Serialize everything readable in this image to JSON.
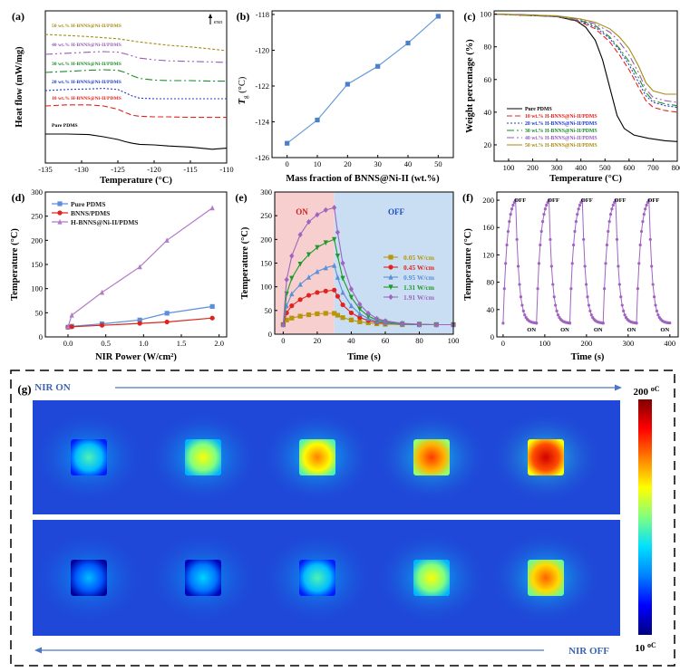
{
  "figure": {
    "panel_g_label": "(g)"
  },
  "chart_data": [
    {
      "id": "a",
      "panel_label": "(a)",
      "type": "line",
      "title": "",
      "xlabel": "Temperature (°C)",
      "ylabel": "Heat flow  (mW/mg)",
      "xlim": [
        -135,
        -110
      ],
      "xticks": [
        -135,
        -130,
        -125,
        -120,
        -115,
        -110
      ],
      "annotation": "exo",
      "series": [
        {
          "name": "Pure PDMS",
          "color": "#000000",
          "dash": "",
          "offset": 0,
          "x": [
            -135,
            -132,
            -129,
            -127,
            -125,
            -124,
            -123,
            -122,
            -120,
            -118,
            -115,
            -112,
            -110
          ],
          "y": [
            0.0,
            0.0,
            -0.01,
            -0.05,
            -0.1,
            -0.14,
            -0.17,
            -0.19,
            -0.2,
            -0.22,
            -0.24,
            -0.28,
            -0.26
          ]
        },
        {
          "name": "10 wt.% H-BNNS@Ni-II/PDMS",
          "color": "#e0241b",
          "dash": "6,3",
          "offset": 1,
          "x": [
            -135,
            -132,
            -129,
            -127,
            -125,
            -124,
            -123,
            -122,
            -120,
            -118,
            -115,
            -112,
            -110
          ],
          "y": [
            0.0,
            0.02,
            0.02,
            0.0,
            -0.06,
            -0.12,
            -0.17,
            -0.19,
            -0.2,
            -0.2,
            -0.21,
            -0.21,
            -0.21
          ]
        },
        {
          "name": "20 wt.% H-BNNS@Ni-II/PDMS",
          "color": "#1f3cc4",
          "dash": "2,2",
          "offset": 2,
          "x": [
            -135,
            -132,
            -129,
            -127,
            -125,
            -124,
            -123,
            -122,
            -120,
            -118,
            -115,
            -112,
            -110
          ],
          "y": [
            0.0,
            0.02,
            0.03,
            0.04,
            0.02,
            -0.04,
            -0.1,
            -0.14,
            -0.15,
            -0.15,
            -0.15,
            -0.15,
            -0.15
          ]
        },
        {
          "name": "30 wt.% H-BNNS@Ni-II/PDMS",
          "color": "#1e8a2a",
          "dash": "8,3,2,3",
          "offset": 3,
          "x": [
            -135,
            -132,
            -129,
            -127,
            -125,
            -124,
            -123,
            -122,
            -120,
            -118,
            -115,
            -112,
            -110
          ],
          "y": [
            0.0,
            0.02,
            0.04,
            0.05,
            0.04,
            0.0,
            -0.06,
            -0.11,
            -0.14,
            -0.15,
            -0.15,
            -0.16,
            -0.16
          ]
        },
        {
          "name": "40 wt.% H-BNNS@Ni-II/PDMS",
          "color": "#9a5cb8",
          "dash": "8,3,2,3,2,3",
          "offset": 4,
          "x": [
            -135,
            -132,
            -129,
            -127,
            -125,
            -124,
            -123,
            -122,
            -120,
            -118,
            -115,
            -112,
            -110
          ],
          "y": [
            0.0,
            0.02,
            0.04,
            0.05,
            0.04,
            0.01,
            -0.03,
            -0.07,
            -0.1,
            -0.12,
            -0.13,
            -0.14,
            -0.15
          ]
        },
        {
          "name": "50 wt.% H-BNNS@Ni-II/PDMS",
          "color": "#a88a14",
          "dash": "3,2",
          "offset": 5,
          "x": [
            -135,
            -132,
            -129,
            -127,
            -125,
            -124,
            -123,
            -122,
            -120,
            -118,
            -115,
            -112,
            -110
          ],
          "y": [
            0.0,
            -0.02,
            -0.04,
            -0.06,
            -0.08,
            -0.1,
            -0.12,
            -0.14,
            -0.17,
            -0.2,
            -0.23,
            -0.27,
            -0.3
          ]
        }
      ]
    },
    {
      "id": "b",
      "panel_label": "(b)",
      "type": "line",
      "title": "",
      "xlabel": "Mass fraction of BNNS@Ni-II (wt.%)",
      "ylabel_main": "T",
      "ylabel_sub": "g",
      "ylabel_unit": " (°C)",
      "xlim": [
        -5,
        55
      ],
      "ylim": [
        -126,
        -117.8
      ],
      "xticks": [
        0,
        10,
        20,
        30,
        40,
        50
      ],
      "yticks": [
        -126,
        -124,
        -122,
        -120,
        -118
      ],
      "series": [
        {
          "name": "Tg",
          "color": "#6a9bd8",
          "x": [
            0,
            10,
            20,
            30,
            40,
            50
          ],
          "y": [
            -125.2,
            -123.9,
            -121.9,
            -120.9,
            -119.6,
            -118.1
          ]
        }
      ]
    },
    {
      "id": "c",
      "panel_label": "(c)",
      "type": "line",
      "title": "",
      "xlabel": "Temperature (°C)",
      "ylabel": "Weight percentage (%)",
      "xlim": [
        40,
        800
      ],
      "ylim": [
        10,
        102
      ],
      "xticks": [
        100,
        200,
        300,
        400,
        500,
        600,
        700,
        800
      ],
      "yticks": [
        20,
        40,
        60,
        80,
        100
      ],
      "series": [
        {
          "name": "Pure PDMS",
          "color": "#000000",
          "dash": "",
          "x": [
            40,
            200,
            300,
            380,
            420,
            460,
            490,
            520,
            550,
            580,
            620,
            680,
            750,
            800
          ],
          "y": [
            100,
            99.5,
            98.5,
            96,
            92,
            84,
            72,
            55,
            38,
            30,
            26,
            24,
            22.5,
            22
          ]
        },
        {
          "name": "10 wt.% H-BNNS@Ni-II/PDMS",
          "color": "#e0241b",
          "dash": "6,3",
          "x": [
            40,
            300,
            400,
            460,
            520,
            560,
            600,
            640,
            670,
            700,
            750,
            800
          ],
          "y": [
            100,
            98.5,
            95,
            91,
            83,
            75,
            66,
            55,
            47,
            43,
            41,
            40
          ]
        },
        {
          "name": "20 wt.% H-BNNS@Ni-II/PDMS",
          "color": "#1f3cc4",
          "dash": "2,2",
          "x": [
            40,
            300,
            400,
            460,
            520,
            560,
            600,
            640,
            670,
            700,
            750,
            800
          ],
          "y": [
            100,
            98.5,
            95.5,
            92,
            85,
            78,
            69,
            58,
            50,
            46,
            44,
            43
          ]
        },
        {
          "name": "30 wt.% H-BNNS@Ni-II/PDMS",
          "color": "#1e8a2a",
          "dash": "8,3,2,3",
          "x": [
            40,
            300,
            400,
            460,
            520,
            560,
            600,
            640,
            670,
            700,
            750,
            800
          ],
          "y": [
            100,
            98.5,
            96,
            93,
            86,
            79,
            71,
            61,
            52,
            47,
            45,
            44
          ]
        },
        {
          "name": "40 wt.% H-BNNS@Ni-II/PDMS",
          "color": "#9a5cb8",
          "dash": "8,3,2,3,2,3",
          "x": [
            40,
            300,
            400,
            460,
            520,
            560,
            600,
            640,
            670,
            700,
            750,
            800
          ],
          "y": [
            100,
            98.8,
            96.5,
            94,
            89,
            83,
            75,
            64,
            54,
            49,
            47,
            46
          ]
        },
        {
          "name": "50 wt.% H-BNNS@Ni-II/PDMS",
          "color": "#a88a14",
          "dash": "",
          "x": [
            40,
            300,
            400,
            460,
            520,
            560,
            600,
            640,
            670,
            700,
            750,
            800
          ],
          "y": [
            100,
            99,
            97,
            95,
            91,
            86,
            79,
            68,
            58,
            53,
            51,
            51
          ]
        }
      ]
    },
    {
      "id": "d",
      "panel_label": "(d)",
      "type": "line",
      "title": "",
      "xlabel": "NIR Power (W/cm²)",
      "ylabel": "Temperature (°C)",
      "xlim": [
        -0.3,
        2.1
      ],
      "ylim": [
        0,
        300
      ],
      "xticks": [
        0.0,
        0.5,
        1.0,
        1.5,
        2.0
      ],
      "xticklabels": [
        "0.0",
        "0.5",
        "1.0",
        "1.5",
        "2.0"
      ],
      "yticks": [
        0,
        50,
        100,
        150,
        200,
        250,
        300
      ],
      "series": [
        {
          "name": "Pure PDMS",
          "color": "#5b8fd9",
          "marker": "square",
          "x": [
            0.0,
            0.05,
            0.45,
            0.95,
            1.31,
            1.91
          ],
          "y": [
            20,
            22,
            27,
            35,
            49,
            63
          ]
        },
        {
          "name": "BNNS/PDMS",
          "color": "#e0241b",
          "marker": "circle",
          "x": [
            0.0,
            0.05,
            0.45,
            0.95,
            1.31,
            1.91
          ],
          "y": [
            20,
            21,
            24,
            28,
            31,
            39
          ]
        },
        {
          "name": "H-BNNS@Ni-II/PDMS",
          "color": "#b07cc6",
          "marker": "triangle",
          "x": [
            0.0,
            0.05,
            0.45,
            0.95,
            1.31,
            1.91
          ],
          "y": [
            21,
            45,
            92,
            145,
            200,
            267
          ]
        }
      ]
    },
    {
      "id": "e",
      "panel_label": "(e)",
      "type": "line",
      "title": "",
      "xlabel": "Time (s)",
      "ylabel": "Temperature (°C)",
      "xlim": [
        -5,
        100
      ],
      "ylim": [
        0,
        300
      ],
      "xticks": [
        0,
        20,
        40,
        60,
        80,
        100
      ],
      "yticks": [
        0,
        50,
        100,
        150,
        200,
        250,
        300
      ],
      "on_label": "ON",
      "off_label": "OFF",
      "switch_time": 30,
      "series": [
        {
          "name": "0.05 W/cm",
          "color": "#b8960c",
          "marker": "square",
          "x": [
            0,
            2,
            5,
            10,
            15,
            20,
            25,
            30,
            32,
            35,
            40,
            45,
            50,
            55,
            60,
            70,
            80,
            90,
            100
          ],
          "y": [
            20,
            30,
            34,
            38,
            41,
            43,
            44,
            44,
            40,
            35,
            30,
            26,
            24,
            22,
            21,
            20,
            20,
            20,
            20
          ]
        },
        {
          "name": "0.45 W/cm",
          "color": "#e0241b",
          "marker": "circle",
          "x": [
            0,
            2,
            5,
            10,
            15,
            20,
            25,
            30,
            32,
            35,
            40,
            45,
            50,
            55,
            60,
            70,
            80,
            90,
            100
          ],
          "y": [
            20,
            45,
            60,
            73,
            82,
            88,
            91,
            93,
            80,
            62,
            45,
            35,
            29,
            25,
            23,
            21,
            20,
            20,
            20
          ]
        },
        {
          "name": "0.95 W/cm",
          "color": "#5b8fd9",
          "marker": "triangle",
          "x": [
            0,
            2,
            5,
            10,
            15,
            20,
            25,
            30,
            32,
            35,
            40,
            45,
            50,
            55,
            60,
            70,
            80,
            90,
            100
          ],
          "y": [
            20,
            60,
            85,
            105,
            120,
            132,
            140,
            145,
            120,
            88,
            60,
            43,
            33,
            27,
            24,
            21,
            20,
            20,
            20
          ]
        },
        {
          "name": "1.31 W/cm",
          "color": "#1e9a2a",
          "marker": "invtriangle",
          "x": [
            0,
            2,
            5,
            10,
            15,
            20,
            25,
            30,
            32,
            35,
            40,
            45,
            50,
            55,
            60,
            70,
            80,
            90,
            100
          ],
          "y": [
            20,
            85,
            118,
            148,
            168,
            183,
            193,
            200,
            165,
            118,
            78,
            53,
            38,
            30,
            26,
            22,
            21,
            20,
            20
          ]
        },
        {
          "name": "1.91 W/cm",
          "color": "#a064c0",
          "marker": "diamond",
          "x": [
            0,
            2,
            5,
            10,
            15,
            20,
            25,
            30,
            32,
            35,
            40,
            45,
            50,
            55,
            60,
            70,
            80,
            90,
            100
          ],
          "y": [
            20,
            115,
            165,
            210,
            237,
            252,
            262,
            267,
            215,
            150,
            95,
            63,
            44,
            33,
            28,
            23,
            21,
            20,
            20
          ]
        }
      ]
    },
    {
      "id": "f",
      "panel_label": "(f)",
      "type": "line",
      "title": "",
      "xlabel": "Time (s)",
      "ylabel": "Temperature (°C)",
      "xlim": [
        -15,
        420
      ],
      "ylim": [
        0,
        212
      ],
      "xticks": [
        0,
        100,
        200,
        300,
        400
      ],
      "yticks": [
        0,
        40,
        80,
        120,
        160,
        200
      ],
      "on_label": "ON",
      "off_label": "OFF",
      "cycles": 5,
      "cycle_period": 80,
      "heating_duration": 30,
      "base_temperature": 20,
      "peak_temperature": 200,
      "color": "#a064c0"
    }
  ],
  "thermal_images": {
    "nir_on_label": "NIR ON",
    "nir_off_label": "NIR OFF",
    "colorbar_max": "200 °C",
    "colorbar_min": "10 °C",
    "colorbar_max_value": "200",
    "colorbar_max_unit": "oC",
    "colorbar_min_value": "10",
    "colorbar_min_unit": "oC",
    "colormap": [
      "#000080",
      "#0000ff",
      "#0080ff",
      "#00e0ff",
      "#80ff80",
      "#ffff00",
      "#ff8000",
      "#ff0000",
      "#800000"
    ],
    "on_row_levels": [
      0.45,
      0.62,
      0.75,
      0.82,
      0.92
    ],
    "off_row_levels": [
      0.33,
      0.36,
      0.45,
      0.62,
      0.78
    ]
  }
}
